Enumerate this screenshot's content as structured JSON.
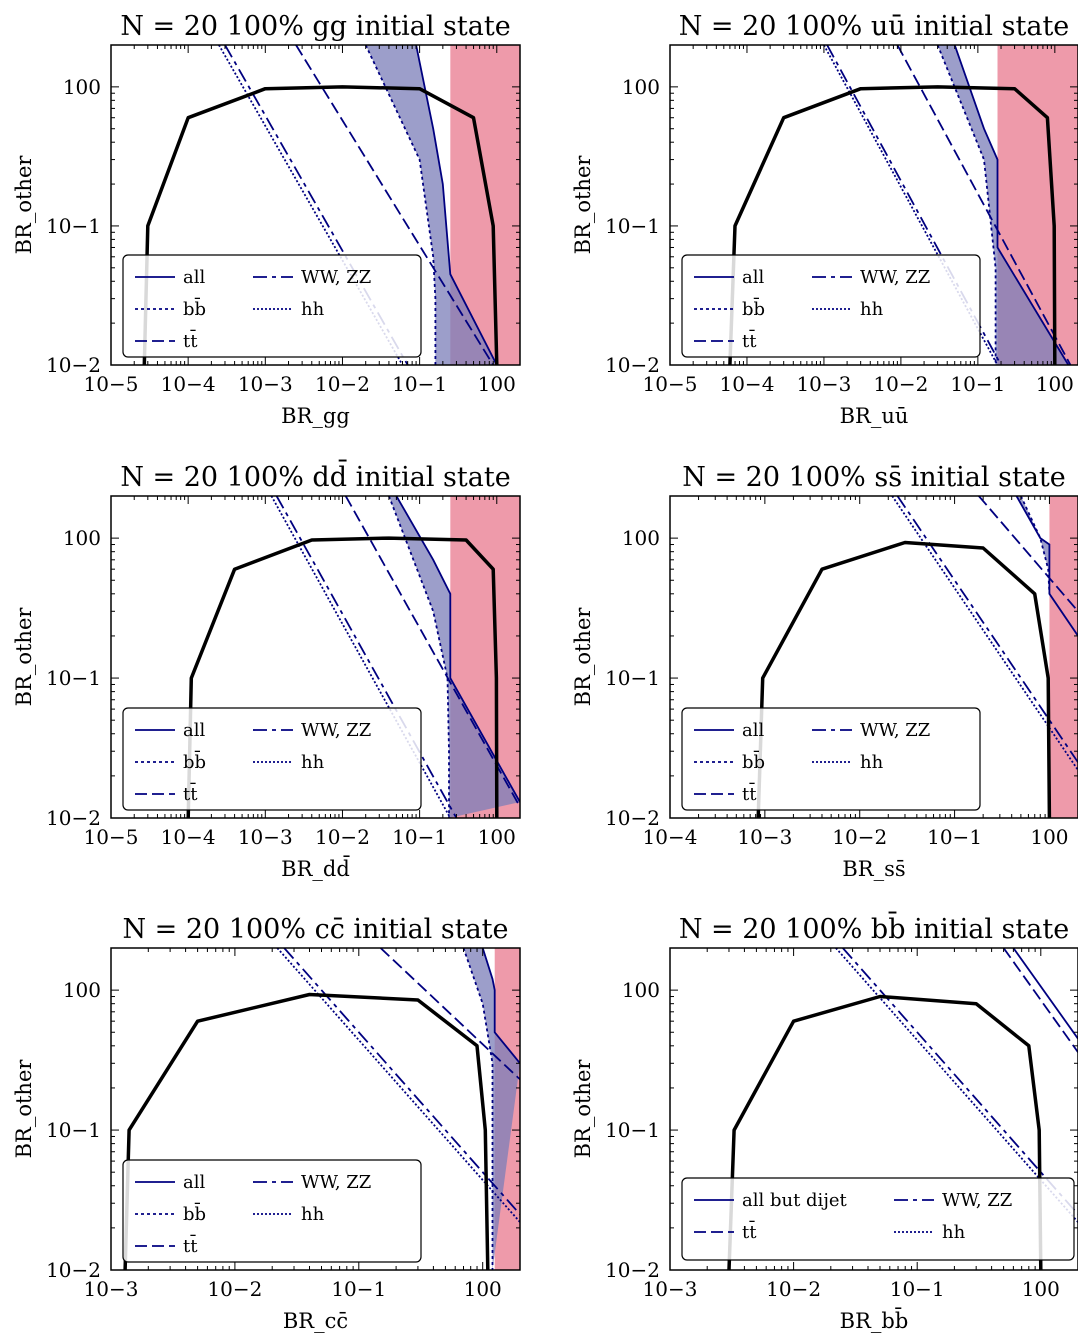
{
  "colors": {
    "curve": "#000000",
    "bound": "#000080",
    "band_fill": "#7b7eb8",
    "excluded": "#ee9aaa"
  },
  "panels": [
    {
      "title": "N = 20 100% gg initial state",
      "xlabel": "BR_gg",
      "ylabel": "BR_other",
      "xticks": [
        "10−5",
        "10−4",
        "10−3",
        "10−2",
        "10−1",
        "100"
      ],
      "yticks": [
        "10−2",
        "10−1",
        "100"
      ],
      "legend": [
        "all",
        "WW, ZZ",
        "bb̄",
        "hh",
        "tt̄"
      ]
    },
    {
      "title": "N = 20 100% uū initial state",
      "xlabel": "BR_uū",
      "ylabel": "BR_other",
      "xticks": [
        "10−5",
        "10−4",
        "10−3",
        "10−2",
        "10−1",
        "100"
      ],
      "yticks": [
        "10−2",
        "10−1",
        "100"
      ],
      "legend": [
        "all",
        "WW, ZZ",
        "bb̄",
        "hh",
        "tt̄"
      ]
    },
    {
      "title": "N = 20 100% dd̄ initial state",
      "xlabel": "BR_dd̄",
      "ylabel": "BR_other",
      "xticks": [
        "10−5",
        "10−4",
        "10−3",
        "10−2",
        "10−1",
        "100"
      ],
      "yticks": [
        "10−2",
        "10−1",
        "100"
      ],
      "legend": [
        "all",
        "WW, ZZ",
        "bb̄",
        "hh",
        "tt̄"
      ]
    },
    {
      "title": "N = 20 100% ss̄ initial state",
      "xlabel": "BR_ss̄",
      "ylabel": "BR_other",
      "xticks": [
        "10−4",
        "10−3",
        "10−2",
        "10−1",
        "100"
      ],
      "yticks": [
        "10−2",
        "10−1",
        "100"
      ],
      "legend": [
        "all",
        "WW, ZZ",
        "bb̄",
        "hh",
        "tt̄"
      ]
    },
    {
      "title": "N = 20 100% cc̄ initial state",
      "xlabel": "BR_cc̄",
      "ylabel": "BR_other",
      "xticks": [
        "10−3",
        "10−2",
        "10−1",
        "100"
      ],
      "yticks": [
        "10−2",
        "10−1",
        "100"
      ],
      "legend": [
        "all",
        "WW, ZZ",
        "bb̄",
        "hh",
        "tt̄"
      ]
    },
    {
      "title": "N = 20 100% bb̄ initial state",
      "xlabel": "BR_bb̄",
      "ylabel": "BR_other",
      "xticks": [
        "10−3",
        "10−2",
        "10−1",
        "100"
      ],
      "yticks": [
        "10−2",
        "10−1",
        "100"
      ],
      "legend": [
        "all but dijet",
        "WW, ZZ",
        "tt̄",
        "hh"
      ]
    }
  ],
  "chart_data": [
    {
      "type": "line",
      "title": "N = 20 100% gg initial state",
      "xlabel": "BR_gg",
      "ylabel": "BR_other",
      "xscale": "log",
      "yscale": "log",
      "xlim": [
        1e-05,
        2
      ],
      "ylim": [
        0.01,
        2
      ],
      "excluded_region_x": [
        0.25,
        2
      ],
      "series": [
        {
          "name": "all",
          "x": [
            0.09,
            0.15,
            0.2,
            0.25,
            1.0
          ],
          "y": [
            2,
            0.5,
            0.2,
            0.045,
            0.01
          ]
        },
        {
          "name": "WW, ZZ",
          "x": [
            0.0003,
            0.07
          ],
          "y": [
            2,
            0.01
          ]
        },
        {
          "name": "bb̄",
          "x": [
            0.02,
            0.1,
            0.15,
            0.16,
            0.16
          ],
          "y": [
            2,
            0.3,
            0.06,
            0.03,
            0.01
          ]
        },
        {
          "name": "hh",
          "x": [
            0.00025,
            0.06
          ],
          "y": [
            2,
            0.01
          ]
        },
        {
          "name": "tt̄",
          "x": [
            0.0025,
            0.9
          ],
          "y": [
            2,
            0.01
          ]
        },
        {
          "name": "curve",
          "x": [
            2.7e-05,
            3e-05,
            0.0001,
            0.001,
            0.01,
            0.1,
            0.5,
            0.9,
            1.0
          ],
          "y": [
            0.01,
            0.1,
            0.6,
            0.97,
            1.0,
            0.97,
            0.6,
            0.1,
            0.01
          ]
        }
      ]
    },
    {
      "type": "line",
      "title": "N = 20 100% uū initial state",
      "xlabel": "BR_uū",
      "ylabel": "BR_other",
      "xscale": "log",
      "yscale": "log",
      "xlim": [
        1e-05,
        2
      ],
      "ylim": [
        0.01,
        2
      ],
      "excluded_region_x": [
        0.18,
        2
      ],
      "series": [
        {
          "name": "all",
          "x": [
            0.05,
            0.12,
            0.18,
            0.18,
            1.5
          ],
          "y": [
            2,
            0.5,
            0.3,
            0.07,
            0.01
          ]
        },
        {
          "name": "WW, ZZ",
          "x": [
            0.0011,
            0.2
          ],
          "y": [
            2,
            0.01
          ]
        },
        {
          "name": "bb̄",
          "x": [
            0.03,
            0.12,
            0.17,
            0.17
          ],
          "y": [
            2,
            0.3,
            0.05,
            0.01
          ]
        },
        {
          "name": "hh",
          "x": [
            0.001,
            0.18
          ],
          "y": [
            2,
            0.01
          ]
        },
        {
          "name": "tt̄",
          "x": [
            0.009,
            1.6
          ],
          "y": [
            2,
            0.01
          ]
        },
        {
          "name": "curve",
          "x": [
            6e-05,
            7e-05,
            0.0003,
            0.003,
            0.03,
            0.3,
            0.8,
            0.98,
            1.0
          ],
          "y": [
            0.01,
            0.1,
            0.6,
            0.97,
            1.0,
            0.97,
            0.6,
            0.1,
            0.01
          ]
        }
      ]
    },
    {
      "type": "line",
      "title": "N = 20 100% dd̄ initial state",
      "xlabel": "BR_dd̄",
      "ylabel": "BR_other",
      "xscale": "log",
      "yscale": "log",
      "xlim": [
        1e-05,
        2
      ],
      "ylim": [
        0.01,
        2
      ],
      "excluded_region_x": [
        0.25,
        2
      ],
      "series": [
        {
          "name": "all",
          "x": [
            0.05,
            0.15,
            0.25,
            0.25,
            2
          ],
          "y": [
            2,
            0.7,
            0.4,
            0.1,
            0.013
          ]
        },
        {
          "name": "WW, ZZ",
          "x": [
            0.0014,
            0.3
          ],
          "y": [
            2,
            0.01
          ]
        },
        {
          "name": "bb̄",
          "x": [
            0.04,
            0.15,
            0.23,
            0.24,
            0.24
          ],
          "y": [
            2,
            0.3,
            0.1,
            0.03,
            0.01
          ]
        },
        {
          "name": "hh",
          "x": [
            0.0012,
            0.25
          ],
          "y": [
            2,
            0.01
          ]
        },
        {
          "name": "tt̄",
          "x": [
            0.011,
            2
          ],
          "y": [
            2,
            0.012
          ]
        },
        {
          "name": "curve",
          "x": [
            0.0001,
            0.00011,
            0.0004,
            0.004,
            0.04,
            0.4,
            0.9,
            0.99,
            1.0
          ],
          "y": [
            0.01,
            0.1,
            0.6,
            0.97,
            1.0,
            0.97,
            0.6,
            0.1,
            0.01
          ]
        }
      ]
    },
    {
      "type": "line",
      "title": "N = 20 100% ss̄ initial state",
      "xlabel": "BR_ss̄",
      "ylabel": "BR_other",
      "xscale": "log",
      "yscale": "log",
      "xlim": [
        0.0001,
        2
      ],
      "ylim": [
        0.01,
        2
      ],
      "excluded_region_x": [
        1.0,
        2
      ],
      "series": [
        {
          "name": "all",
          "x": [
            0.45,
            0.8,
            1.0,
            1.0,
            2
          ],
          "y": [
            2,
            1.0,
            0.9,
            0.4,
            0.2
          ]
        },
        {
          "name": "WW, ZZ",
          "x": [
            0.025,
            2
          ],
          "y": [
            2,
            0.025
          ]
        },
        {
          "name": "bb̄",
          "x": [
            0.5,
            0.8,
            0.97,
            1.0
          ],
          "y": [
            2,
            1.0,
            0.6,
            0.4
          ]
        },
        {
          "name": "hh",
          "x": [
            0.022,
            2
          ],
          "y": [
            2,
            0.022
          ]
        },
        {
          "name": "tt̄",
          "x": [
            0.18,
            2
          ],
          "y": [
            2,
            0.3
          ]
        },
        {
          "name": "curve",
          "x": [
            0.00085,
            0.00095,
            0.004,
            0.03,
            0.2,
            0.7,
            0.97,
            1.0
          ],
          "y": [
            0.01,
            0.1,
            0.6,
            0.93,
            0.85,
            0.4,
            0.1,
            0.01
          ]
        }
      ]
    },
    {
      "type": "line",
      "title": "N = 20 100% cc̄ initial state",
      "xlabel": "BR_cc̄",
      "ylabel": "BR_other",
      "xscale": "log",
      "yscale": "log",
      "xlim": [
        0.001,
        2
      ],
      "ylim": [
        0.01,
        2
      ],
      "excluded_region_x": [
        1.25,
        2
      ],
      "series": [
        {
          "name": "all",
          "x": [
            1.0,
            1.2,
            1.25,
            1.25,
            2
          ],
          "y": [
            2,
            1.2,
            1.0,
            0.5,
            0.3
          ]
        },
        {
          "name": "WW, ZZ",
          "x": [
            0.025,
            2
          ],
          "y": [
            2,
            0.025
          ]
        },
        {
          "name": "bb̄",
          "x": [
            0.7,
            1.0,
            1.2,
            1.2
          ],
          "y": [
            2,
            0.8,
            0.3,
            0.01
          ]
        },
        {
          "name": "hh",
          "x": [
            0.022,
            2
          ],
          "y": [
            2,
            0.022
          ]
        },
        {
          "name": "tt̄",
          "x": [
            0.15,
            2
          ],
          "y": [
            2,
            0.23
          ]
        },
        {
          "name": "curve",
          "x": [
            0.0013,
            0.0014,
            0.005,
            0.04,
            0.3,
            0.9,
            1.05,
            1.1
          ],
          "y": [
            0.01,
            0.1,
            0.6,
            0.93,
            0.85,
            0.4,
            0.1,
            0.01
          ]
        }
      ]
    },
    {
      "type": "line",
      "title": "N = 20 100% bb̄ initial state",
      "xlabel": "BR_bb̄",
      "ylabel": "BR_other",
      "xscale": "log",
      "yscale": "log",
      "xlim": [
        0.001,
        2
      ],
      "ylim": [
        0.01,
        2
      ],
      "series": [
        {
          "name": "all but dijet",
          "x": [
            0.6,
            2
          ],
          "y": [
            2,
            0.45
          ]
        },
        {
          "name": "WW, ZZ",
          "x": [
            0.025,
            2
          ],
          "y": [
            2,
            0.025
          ]
        },
        {
          "name": "tt̄",
          "x": [
            0.5,
            2
          ],
          "y": [
            2,
            0.36
          ]
        },
        {
          "name": "hh",
          "x": [
            0.022,
            2
          ],
          "y": [
            2,
            0.022
          ]
        },
        {
          "name": "curve",
          "x": [
            0.003,
            0.0033,
            0.01,
            0.05,
            0.3,
            0.8,
            0.97,
            1.0
          ],
          "y": [
            0.01,
            0.1,
            0.6,
            0.9,
            0.8,
            0.4,
            0.1,
            0.01
          ]
        }
      ]
    }
  ]
}
